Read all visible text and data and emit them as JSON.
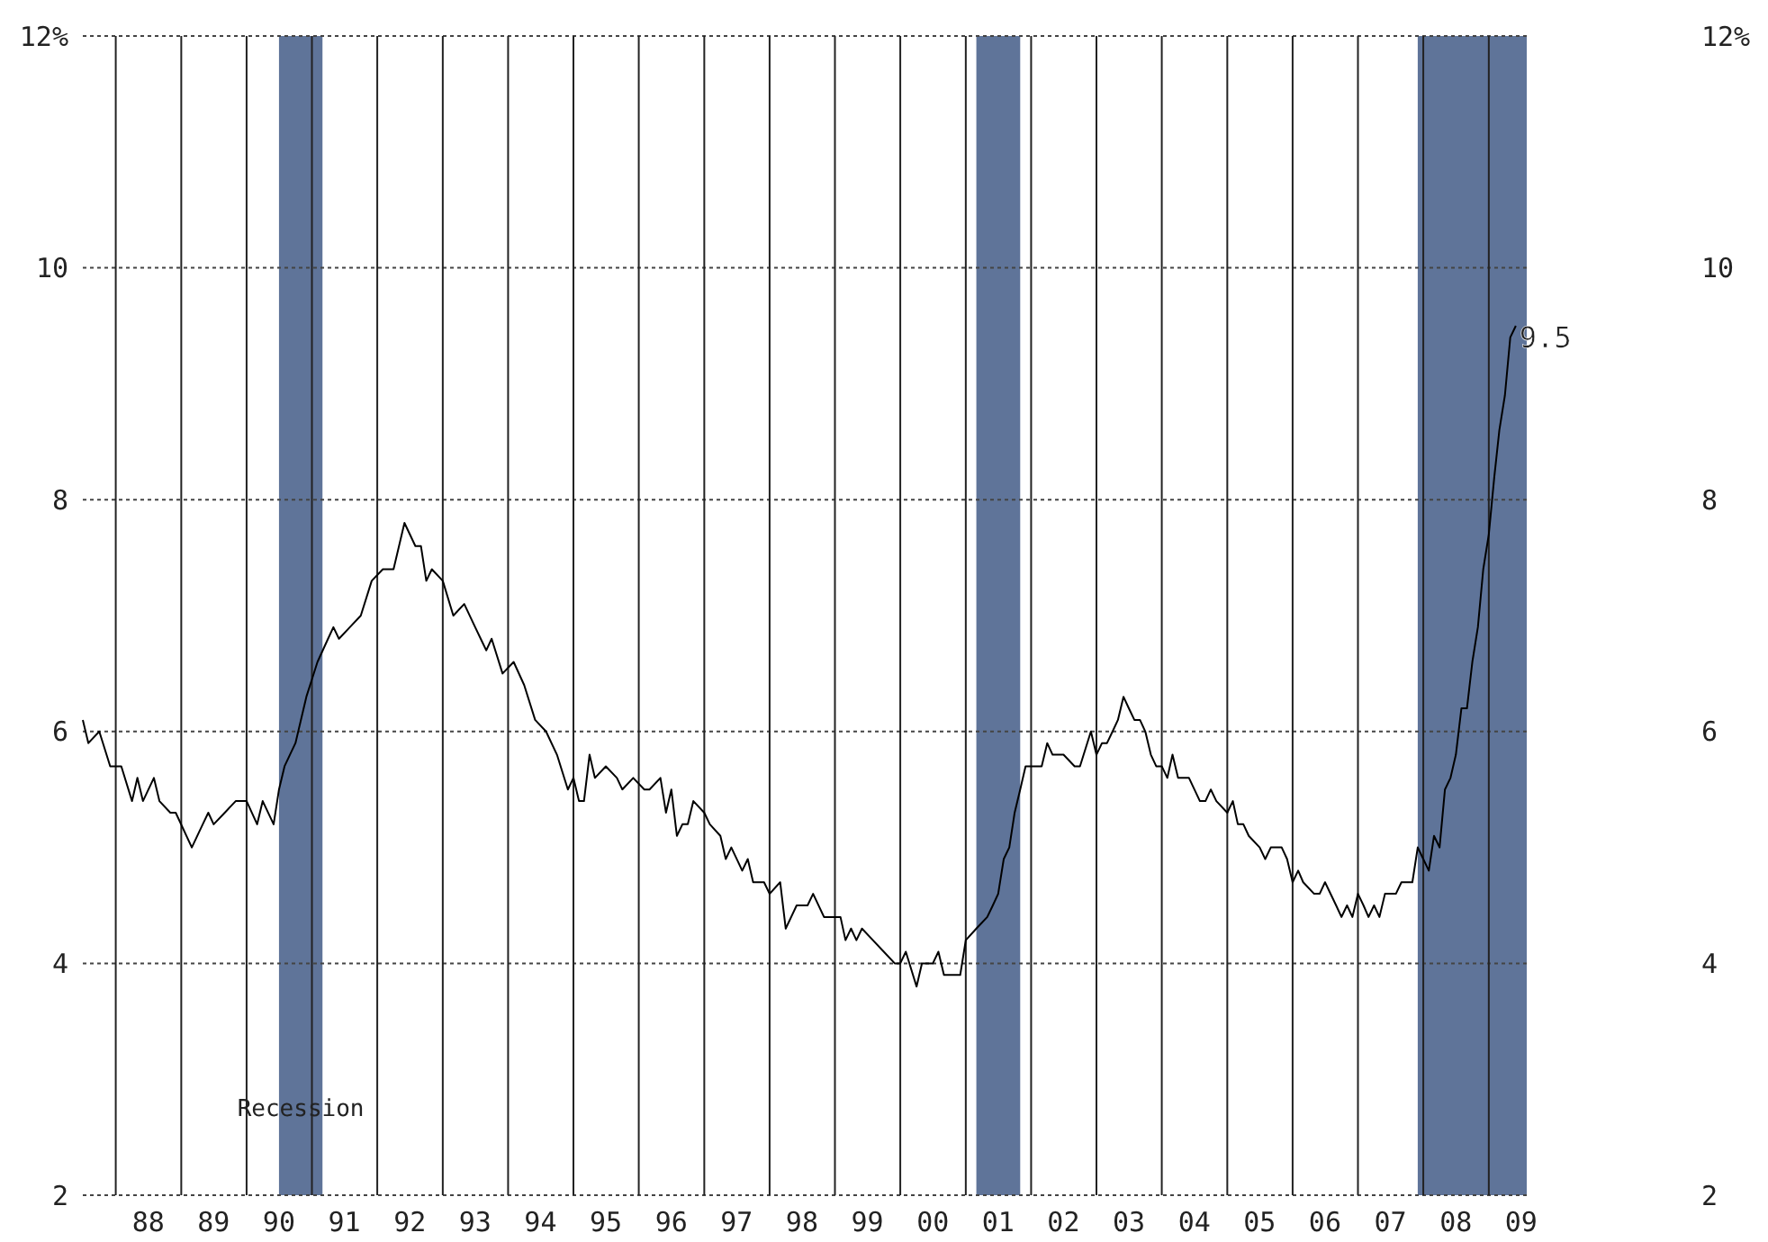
{
  "chart_data": {
    "type": "line",
    "x": [
      "1987-07",
      "1987-08",
      "1987-10",
      "1987-12",
      "1988-02",
      "1988-04",
      "1988-05",
      "1988-06",
      "1988-08",
      "1988-09",
      "1988-11",
      "1988-12",
      "1989-03",
      "1989-05",
      "1989-06",
      "1989-07",
      "1989-09",
      "1989-11",
      "1990-01",
      "1990-03",
      "1990-04",
      "1990-06",
      "1990-07",
      "1990-08",
      "1990-10",
      "1990-12",
      "1991-02",
      "1991-04",
      "1991-05",
      "1991-06",
      "1991-08",
      "1991-10",
      "1991-12",
      "1992-02",
      "1992-04",
      "1992-06",
      "1992-08",
      "1992-09",
      "1992-10",
      "1992-11",
      "1993-01",
      "1993-03",
      "1993-05",
      "1993-07",
      "1993-08",
      "1993-09",
      "1993-10",
      "1993-12",
      "1994-02",
      "1994-04",
      "1994-06",
      "1994-08",
      "1994-10",
      "1994-12",
      "1995-01",
      "1995-02",
      "1995-03",
      "1995-04",
      "1995-05",
      "1995-07",
      "1995-09",
      "1995-10",
      "1995-12",
      "1996-02",
      "1996-03",
      "1996-05",
      "1996-06",
      "1996-07",
      "1996-08",
      "1996-09",
      "1996-10",
      "1996-11",
      "1997-01",
      "1997-02",
      "1997-04",
      "1997-05",
      "1997-06",
      "1997-08",
      "1997-09",
      "1997-10",
      "1997-12",
      "1998-01",
      "1998-03",
      "1998-04",
      "1998-06",
      "1998-08",
      "1998-09",
      "1998-11",
      "1998-12",
      "1999-02",
      "1999-03",
      "1999-04",
      "1999-05",
      "1999-06",
      "1999-08",
      "1999-10",
      "1999-12",
      "2000-01",
      "2000-02",
      "2000-04",
      "2000-05",
      "2000-07",
      "2000-08",
      "2000-09",
      "2000-12",
      "2001-01",
      "2001-03",
      "2001-05",
      "2001-06",
      "2001-07",
      "2001-08",
      "2001-09",
      "2001-10",
      "2001-11",
      "2001-12",
      "2002-03",
      "2002-04",
      "2002-05",
      "2002-07",
      "2002-09",
      "2002-10",
      "2002-12",
      "2003-01",
      "2003-02",
      "2003-03",
      "2003-04",
      "2003-05",
      "2003-06",
      "2003-07",
      "2003-08",
      "2003-09",
      "2003-10",
      "2003-11",
      "2003-12",
      "2004-01",
      "2004-02",
      "2004-03",
      "2004-04",
      "2004-06",
      "2004-08",
      "2004-09",
      "2004-10",
      "2004-11",
      "2005-01",
      "2005-02",
      "2005-03",
      "2005-04",
      "2005-05",
      "2005-07",
      "2005-08",
      "2005-09",
      "2005-11",
      "2005-12",
      "2006-01",
      "2006-02",
      "2006-03",
      "2006-05",
      "2006-06",
      "2006-07",
      "2006-09",
      "2006-10",
      "2006-11",
      "2006-12",
      "2007-01",
      "2007-02",
      "2007-03",
      "2007-04",
      "2007-05",
      "2007-06",
      "2007-08",
      "2007-09",
      "2007-10",
      "2007-11",
      "2007-12",
      "2008-01",
      "2008-02",
      "2008-03",
      "2008-04",
      "2008-05",
      "2008-06",
      "2008-07",
      "2008-08",
      "2008-09",
      "2008-10",
      "2008-11",
      "2008-12",
      "2009-01",
      "2009-02",
      "2009-03",
      "2009-04",
      "2009-05",
      "2009-06"
    ],
    "series": [
      {
        "color": "#000000",
        "values": [
          6.1,
          5.9,
          6.0,
          5.7,
          5.7,
          5.4,
          5.6,
          5.4,
          5.6,
          5.4,
          5.3,
          5.3,
          5.0,
          5.2,
          5.3,
          5.2,
          5.3,
          5.4,
          5.4,
          5.2,
          5.4,
          5.2,
          5.5,
          5.7,
          5.9,
          6.3,
          6.6,
          6.8,
          6.9,
          6.8,
          6.9,
          7.0,
          7.3,
          7.4,
          7.4,
          7.8,
          7.6,
          7.6,
          7.3,
          7.4,
          7.3,
          7.0,
          7.1,
          6.9,
          6.8,
          6.7,
          6.8,
          6.5,
          6.6,
          6.4,
          6.1,
          6.0,
          5.8,
          5.5,
          5.6,
          5.4,
          5.4,
          5.8,
          5.6,
          5.7,
          5.6,
          5.5,
          5.6,
          5.5,
          5.5,
          5.6,
          5.3,
          5.5,
          5.1,
          5.2,
          5.2,
          5.4,
          5.3,
          5.2,
          5.1,
          4.9,
          5.0,
          4.8,
          4.9,
          4.7,
          4.7,
          4.6,
          4.7,
          4.3,
          4.5,
          4.5,
          4.6,
          4.4,
          4.4,
          4.4,
          4.2,
          4.3,
          4.2,
          4.3,
          4.2,
          4.1,
          4.0,
          4.0,
          4.1,
          3.8,
          4.0,
          4.0,
          4.1,
          3.9,
          3.9,
          4.2,
          4.3,
          4.4,
          4.5,
          4.6,
          4.9,
          5.0,
          5.3,
          5.5,
          5.7,
          5.7,
          5.9,
          5.8,
          5.8,
          5.7,
          5.7,
          6.0,
          5.8,
          5.9,
          5.9,
          6.0,
          6.1,
          6.3,
          6.2,
          6.1,
          6.1,
          6.0,
          5.8,
          5.7,
          5.7,
          5.6,
          5.8,
          5.6,
          5.6,
          5.4,
          5.4,
          5.5,
          5.4,
          5.3,
          5.4,
          5.2,
          5.2,
          5.1,
          5.0,
          4.9,
          5.0,
          5.0,
          4.9,
          4.7,
          4.8,
          4.7,
          4.6,
          4.6,
          4.7,
          4.5,
          4.4,
          4.5,
          4.4,
          4.6,
          4.5,
          4.4,
          4.5,
          4.4,
          4.6,
          4.6,
          4.7,
          4.7,
          4.7,
          5.0,
          4.9,
          4.8,
          5.1,
          5.0,
          5.5,
          5.6,
          5.8,
          6.2,
          6.2,
          6.6,
          6.9,
          7.4,
          7.7,
          8.2,
          8.6,
          8.9,
          9.4,
          9.5
        ]
      }
    ],
    "xlim": [
      "1987-07",
      "2009-08"
    ],
    "xticks": [
      {
        "value": "1988-01",
        "label": null
      },
      {
        "value": "1988-07",
        "label": "88"
      },
      {
        "value": "1989-01",
        "label": null
      },
      {
        "value": "1989-07",
        "label": "89"
      },
      {
        "value": "1990-01",
        "label": null
      },
      {
        "value": "1990-07",
        "label": "90"
      },
      {
        "value": "1991-01",
        "label": null
      },
      {
        "value": "1991-07",
        "label": "91"
      },
      {
        "value": "1992-01",
        "label": null
      },
      {
        "value": "1992-07",
        "label": "92"
      },
      {
        "value": "1993-01",
        "label": null
      },
      {
        "value": "1993-07",
        "label": "93"
      },
      {
        "value": "1994-01",
        "label": null
      },
      {
        "value": "1994-07",
        "label": "94"
      },
      {
        "value": "1995-01",
        "label": null
      },
      {
        "value": "1995-07",
        "label": "95"
      },
      {
        "value": "1996-01",
        "label": null
      },
      {
        "value": "1996-07",
        "label": "96"
      },
      {
        "value": "1997-01",
        "label": null
      },
      {
        "value": "1997-07",
        "label": "97"
      },
      {
        "value": "1998-01",
        "label": null
      },
      {
        "value": "1998-07",
        "label": "98"
      },
      {
        "value": "1999-01",
        "label": null
      },
      {
        "value": "1999-07",
        "label": "99"
      },
      {
        "value": "2000-01",
        "label": null
      },
      {
        "value": "2000-07",
        "label": "00"
      },
      {
        "value": "2001-01",
        "label": null
      },
      {
        "value": "2001-07",
        "label": "01"
      },
      {
        "value": "2002-01",
        "label": null
      },
      {
        "value": "2002-07",
        "label": "02"
      },
      {
        "value": "2003-01",
        "label": null
      },
      {
        "value": "2003-07",
        "label": "03"
      },
      {
        "value": "2004-01",
        "label": null
      },
      {
        "value": "2004-07",
        "label": "04"
      },
      {
        "value": "2005-01",
        "label": null
      },
      {
        "value": "2005-07",
        "label": "05"
      },
      {
        "value": "2006-01",
        "label": null
      },
      {
        "value": "2006-07",
        "label": "06"
      },
      {
        "value": "2007-01",
        "label": null
      },
      {
        "value": "2007-07",
        "label": "07"
      },
      {
        "value": "2008-01",
        "label": null
      },
      {
        "value": "2008-07",
        "label": "08"
      },
      {
        "value": "2009-01",
        "label": null
      },
      {
        "value": "2009-07",
        "label": "09"
      }
    ],
    "ylim": [
      2,
      12
    ],
    "yticks": [
      2,
      4,
      6,
      8,
      10,
      {
        "value": 12,
        "label": "12%"
      }
    ],
    "y2lim": [
      2,
      12
    ],
    "y2ticks": [
      2,
      4,
      6,
      8,
      10,
      {
        "value": 12,
        "label": "12%"
      }
    ],
    "grid": true,
    "bands": [
      {
        "axis": "x",
        "from": "1990-07",
        "to": "1991-03",
        "label": "Recession",
        "color": "#5f7499"
      },
      {
        "axis": "x",
        "from": "2001-03",
        "to": "2001-11",
        "color": "#5f7499"
      },
      {
        "axis": "x",
        "from": "2007-12",
        "to": "2009-08",
        "color": "#5f7499"
      }
    ],
    "annotations": [
      {
        "text": "9.5",
        "x": "2009-06",
        "y": 9.5
      }
    ]
  }
}
